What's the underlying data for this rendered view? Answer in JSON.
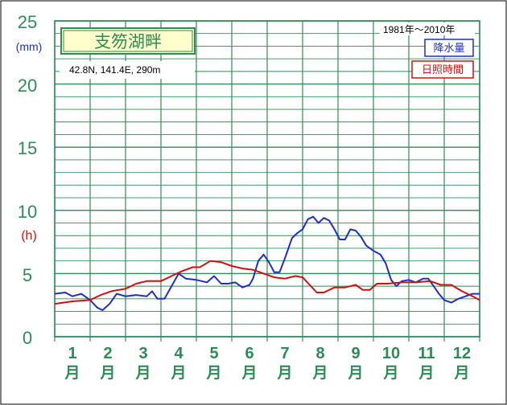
{
  "chart_data": {
    "type": "line",
    "title": "支笏湖畔",
    "location": "42.8N,  141.4E,  290m",
    "period": "1981年〜2010年",
    "y_unit_precip": "(mm)",
    "y_unit_sun": "(h)",
    "ylim": [
      0,
      25
    ],
    "yticks": [
      "0",
      "5",
      "10",
      "15",
      "20",
      "25"
    ],
    "x_range": [
      0,
      12
    ],
    "months": [
      {
        "num": "1",
        "ch": "月"
      },
      {
        "num": "2",
        "ch": "月"
      },
      {
        "num": "3",
        "ch": "月"
      },
      {
        "num": "4",
        "ch": "月"
      },
      {
        "num": "5",
        "ch": "月"
      },
      {
        "num": "6",
        "ch": "月"
      },
      {
        "num": "7",
        "ch": "月"
      },
      {
        "num": "8",
        "ch": "月"
      },
      {
        "num": "9",
        "ch": "月"
      },
      {
        "num": "10",
        "ch": "月"
      },
      {
        "num": "11",
        "ch": "月"
      },
      {
        "num": "12",
        "ch": "月"
      }
    ],
    "series": [
      {
        "name": "降水量",
        "color": "#1f2fbf",
        "points": [
          [
            0,
            3.4
          ],
          [
            0.3,
            3.5
          ],
          [
            0.5,
            3.2
          ],
          [
            0.75,
            3.4
          ],
          [
            1.0,
            2.9
          ],
          [
            1.2,
            2.3
          ],
          [
            1.35,
            2.1
          ],
          [
            1.55,
            2.6
          ],
          [
            1.75,
            3.4
          ],
          [
            2.0,
            3.2
          ],
          [
            2.3,
            3.3
          ],
          [
            2.6,
            3.2
          ],
          [
            2.75,
            3.6
          ],
          [
            2.9,
            3.0
          ],
          [
            3.1,
            3.0
          ],
          [
            3.3,
            4.0
          ],
          [
            3.5,
            5.0
          ],
          [
            3.7,
            4.6
          ],
          [
            4.0,
            4.5
          ],
          [
            4.3,
            4.3
          ],
          [
            4.5,
            4.8
          ],
          [
            4.7,
            4.2
          ],
          [
            4.9,
            4.2
          ],
          [
            5.1,
            4.3
          ],
          [
            5.3,
            3.9
          ],
          [
            5.5,
            4.1
          ],
          [
            5.6,
            4.6
          ],
          [
            5.75,
            6.0
          ],
          [
            5.9,
            6.5
          ],
          [
            6.05,
            5.9
          ],
          [
            6.2,
            5.1
          ],
          [
            6.35,
            5.1
          ],
          [
            6.5,
            6.2
          ],
          [
            6.7,
            7.8
          ],
          [
            6.85,
            8.2
          ],
          [
            7.0,
            8.5
          ],
          [
            7.15,
            9.3
          ],
          [
            7.3,
            9.5
          ],
          [
            7.45,
            9.0
          ],
          [
            7.6,
            9.4
          ],
          [
            7.75,
            9.2
          ],
          [
            7.9,
            8.5
          ],
          [
            8.05,
            7.7
          ],
          [
            8.2,
            7.7
          ],
          [
            8.35,
            8.5
          ],
          [
            8.5,
            8.4
          ],
          [
            8.65,
            7.9
          ],
          [
            8.8,
            7.2
          ],
          [
            9.0,
            6.8
          ],
          [
            9.2,
            6.5
          ],
          [
            9.35,
            5.8
          ],
          [
            9.5,
            4.5
          ],
          [
            9.65,
            4.0
          ],
          [
            9.8,
            4.4
          ],
          [
            10.0,
            4.5
          ],
          [
            10.2,
            4.3
          ],
          [
            10.4,
            4.6
          ],
          [
            10.55,
            4.6
          ],
          [
            10.7,
            4.0
          ],
          [
            10.85,
            3.4
          ],
          [
            11.0,
            2.9
          ],
          [
            11.2,
            2.7
          ],
          [
            11.4,
            3.0
          ],
          [
            11.6,
            3.2
          ],
          [
            11.8,
            3.4
          ],
          [
            12.0,
            3.4
          ]
        ]
      },
      {
        "name": "日照時間",
        "color": "#d01010",
        "points": [
          [
            0,
            2.6
          ],
          [
            0.5,
            2.8
          ],
          [
            1.0,
            2.9
          ],
          [
            1.3,
            3.3
          ],
          [
            1.6,
            3.6
          ],
          [
            2.0,
            3.8
          ],
          [
            2.3,
            4.2
          ],
          [
            2.6,
            4.4
          ],
          [
            3.0,
            4.4
          ],
          [
            3.3,
            4.8
          ],
          [
            3.6,
            5.2
          ],
          [
            3.9,
            5.5
          ],
          [
            4.1,
            5.5
          ],
          [
            4.4,
            6.0
          ],
          [
            4.7,
            5.9
          ],
          [
            5.0,
            5.6
          ],
          [
            5.3,
            5.4
          ],
          [
            5.6,
            5.3
          ],
          [
            5.9,
            5.0
          ],
          [
            6.2,
            4.7
          ],
          [
            6.5,
            4.6
          ],
          [
            6.8,
            4.8
          ],
          [
            7.0,
            4.7
          ],
          [
            7.2,
            4.1
          ],
          [
            7.4,
            3.5
          ],
          [
            7.6,
            3.5
          ],
          [
            7.9,
            3.9
          ],
          [
            8.2,
            3.9
          ],
          [
            8.5,
            4.1
          ],
          [
            8.7,
            3.7
          ],
          [
            8.9,
            3.7
          ],
          [
            9.1,
            4.2
          ],
          [
            9.4,
            4.2
          ],
          [
            9.8,
            4.3
          ],
          [
            10.2,
            4.3
          ],
          [
            10.6,
            4.4
          ],
          [
            10.9,
            4.1
          ],
          [
            11.2,
            4.1
          ],
          [
            11.5,
            3.6
          ],
          [
            11.8,
            3.2
          ],
          [
            12.0,
            2.9
          ]
        ]
      }
    ]
  }
}
